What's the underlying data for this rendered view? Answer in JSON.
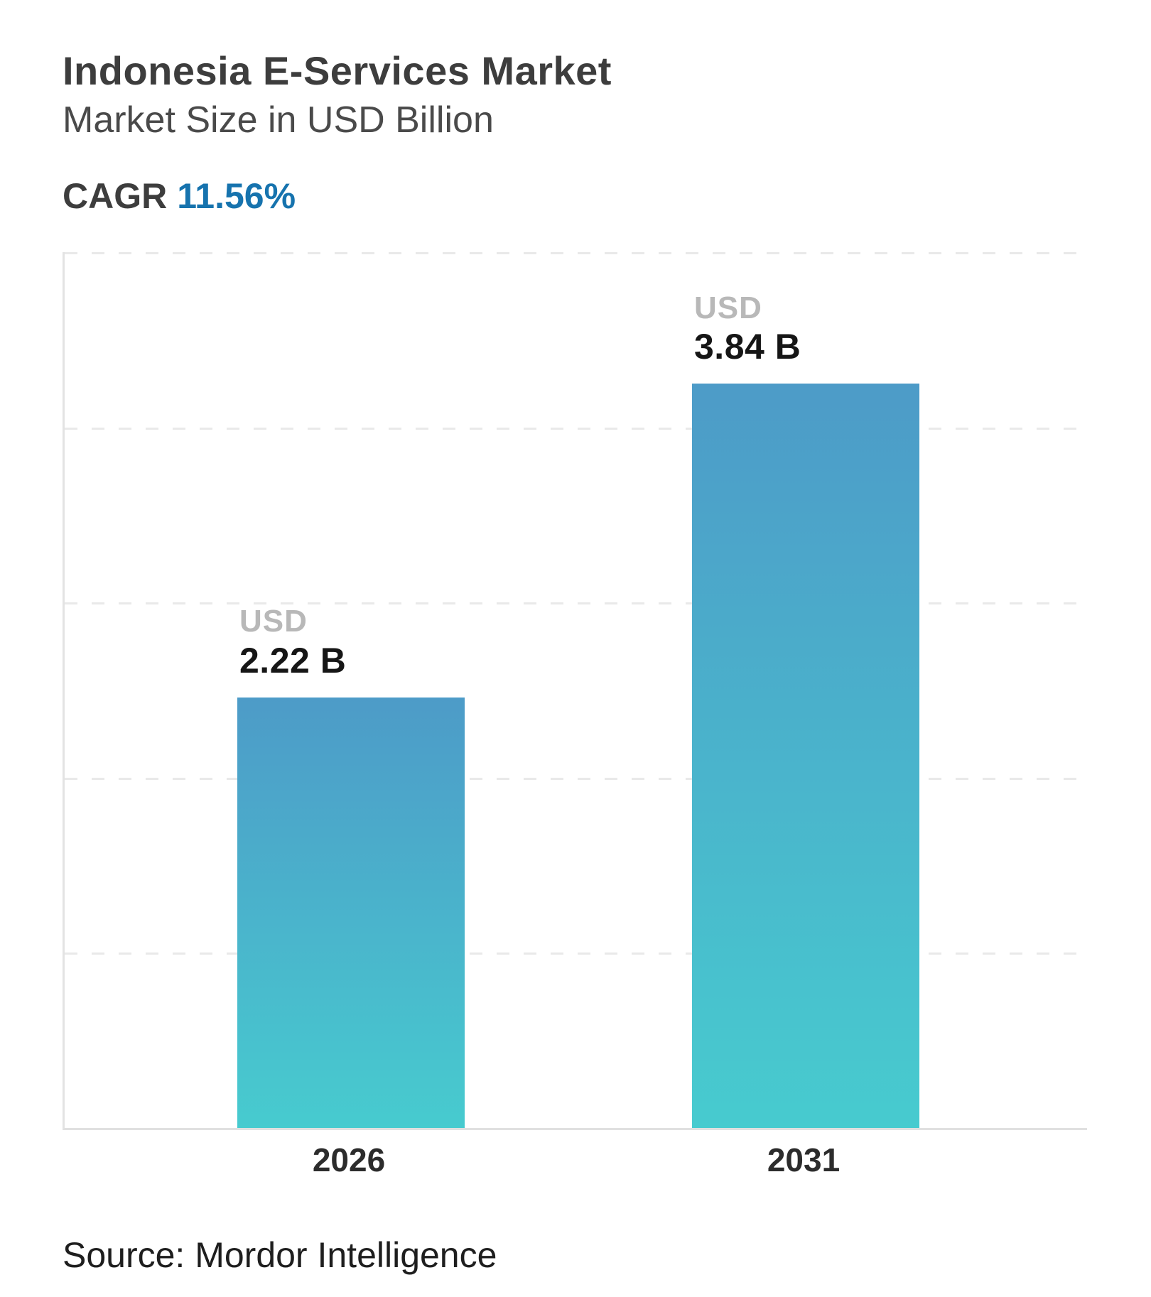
{
  "header": {
    "title": "Indonesia E-Services Market",
    "subtitle": "Market Size in USD Billion",
    "cagr_label": "CAGR",
    "cagr_value": "11.56%"
  },
  "chart_data": {
    "type": "bar",
    "title": "Indonesia E-Services Market",
    "subtitle": "Market Size in USD Billion",
    "categories": [
      "2026",
      "2031"
    ],
    "values": [
      2.22,
      3.84
    ],
    "labels": [
      {
        "unit": "USD",
        "value": "2.22 B"
      },
      {
        "unit": "USD",
        "value": "3.84 B"
      }
    ],
    "cagr": "11.56%",
    "ylabel": "USD Billion",
    "ylim": [
      0,
      4.52
    ],
    "gridline_count": 5,
    "grid_style": "dashed",
    "legend_position": "none",
    "bar_gradient_top": "#4d9bc8",
    "bar_gradient_bottom": "#47cbcf"
  },
  "footer": {
    "source": "Source: Mordor Intelligence"
  },
  "colors": {
    "title_text": "#3d3d3d",
    "subtitle_text": "#4a4a4a",
    "cagr_accent": "#1673ae",
    "unit_label": "#b8b8b8",
    "value_label": "#161616",
    "axis_line": "#e3e3e3",
    "gridline": "#e9e9e9",
    "background": "#ffffff"
  }
}
